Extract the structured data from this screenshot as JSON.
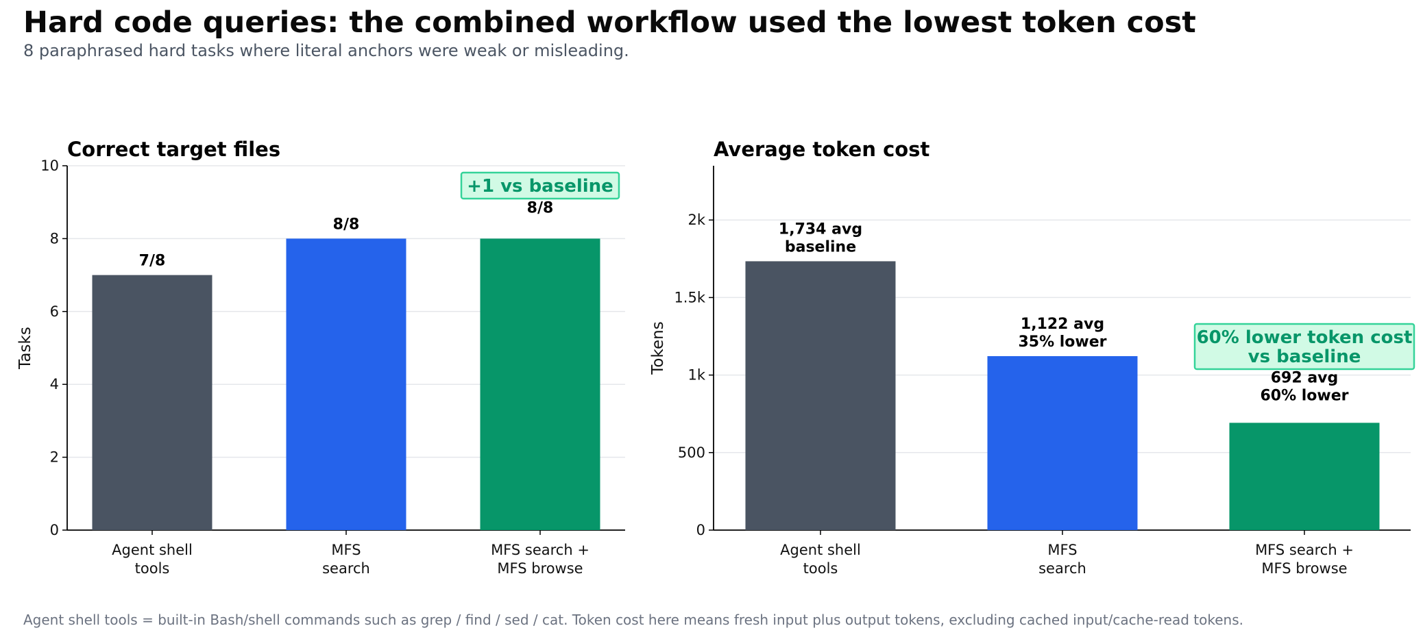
{
  "title": "Hard code queries: the combined workflow used the lowest token cost",
  "subtitle": "8 paraphrased hard tasks where literal anchors were weak or misleading.",
  "footnote": "Agent shell tools = built-in Bash/shell commands such as grep / find / sed / cat. Token cost here means fresh input plus output tokens, excluding cached input/cache-read tokens.",
  "colors": {
    "gray": "#4a5462",
    "blue": "#2563eb",
    "green": "#079669",
    "callout_fill": "#d1fae5",
    "callout_border": "#34d399"
  },
  "chart_data": [
    {
      "type": "bar",
      "title": "Correct target files",
      "xlabel": "",
      "ylabel": "Tasks",
      "categories": [
        [
          "Agent shell",
          "tools"
        ],
        [
          "MFS",
          "search"
        ],
        [
          "MFS search +",
          "MFS browse"
        ]
      ],
      "values": [
        7,
        8,
        8
      ],
      "value_labels": [
        [
          "7/8"
        ],
        [
          "8/8"
        ],
        [
          "8/8"
        ]
      ],
      "bar_colors": [
        "#4a5462",
        "#2563eb",
        "#079669"
      ],
      "ylim": [
        0,
        10
      ],
      "yticks": [
        0,
        2,
        4,
        6,
        8,
        10
      ],
      "ytick_labels": [
        "0",
        "2",
        "4",
        "6",
        "8",
        "10"
      ],
      "grid": true,
      "annotation": {
        "lines": [
          "+1 vs baseline"
        ],
        "bar_index": 2
      }
    },
    {
      "type": "bar",
      "title": "Average token cost",
      "xlabel": "",
      "ylabel": "Tokens",
      "categories": [
        [
          "Agent shell",
          "tools"
        ],
        [
          "MFS",
          "search"
        ],
        [
          "MFS search +",
          "MFS browse"
        ]
      ],
      "values": [
        1734,
        1122,
        692
      ],
      "value_labels": [
        [
          "1,734 avg",
          "baseline"
        ],
        [
          "1,122 avg",
          "35% lower"
        ],
        [
          "692 avg",
          "60% lower"
        ]
      ],
      "bar_colors": [
        "#4a5462",
        "#2563eb",
        "#079669"
      ],
      "ylim": [
        0,
        2350
      ],
      "yticks": [
        0,
        500,
        1000,
        1500,
        2000
      ],
      "ytick_labels": [
        "0",
        "500",
        "1k",
        "1.5k",
        "2k"
      ],
      "grid": true,
      "annotation": {
        "lines": [
          "60% lower token cost",
          "vs baseline"
        ],
        "bar_index": 2
      }
    }
  ]
}
